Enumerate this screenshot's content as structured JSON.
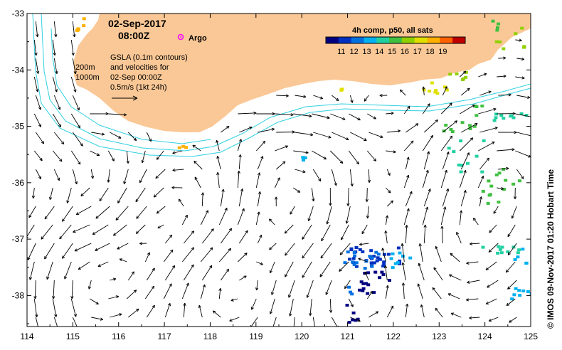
{
  "map": {
    "title_date": "02-Sep-2017",
    "title_time": "08:00Z",
    "argo_label": "Argo",
    "contour_200": "200m",
    "contour_1000": "1000m",
    "gsla_line1": "GSLA (0.1m contours)",
    "gsla_line2": "and velocities for",
    "gsla_line3": "02-Sep 00:00Z",
    "scale_label": "0.5m/s (1kt 24h)",
    "credit": "©  IMOS 09-Nov-2017 01:20 Hobart Time",
    "colorbar_title": "4h comp, p50, all sats",
    "colorbar_ticks": [
      "11",
      "12",
      "13",
      "14",
      "15",
      "16",
      "17",
      "18",
      "19"
    ],
    "colorbar_colors": [
      "#000080",
      "#0030c0",
      "#0070e0",
      "#00b0f0",
      "#20d0a0",
      "#40c040",
      "#90d000",
      "#e0e000",
      "#ffb000",
      "#ff6000",
      "#c00000"
    ],
    "x_ticks": [
      "114",
      "115",
      "116",
      "117",
      "118",
      "119",
      "120",
      "121",
      "122",
      "123",
      "124",
      "125"
    ],
    "y_ticks": [
      "-33",
      "-34",
      "-35",
      "-36",
      "-37",
      "-38"
    ],
    "lon_range": [
      114,
      125
    ],
    "lat_range": [
      -38.55,
      -33
    ],
    "colors": {
      "land": "#fac896",
      "contour": "#30d0e0",
      "argo": "#ff00ff",
      "arrow": "#000000"
    }
  }
}
